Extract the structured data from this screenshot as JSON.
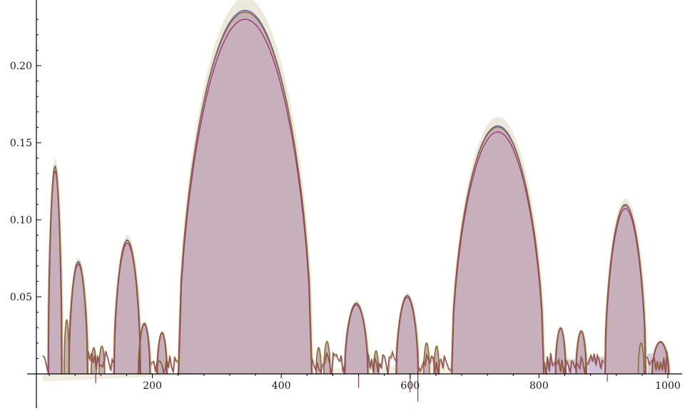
{
  "chart_data": {
    "type": "area",
    "title": "",
    "xlabel": "",
    "ylabel": "",
    "xlim": [
      0,
      1030
    ],
    "ylim": [
      -0.02,
      0.24
    ],
    "x_ticks": [
      200,
      400,
      600,
      800,
      1000
    ],
    "y_ticks": [
      0.05,
      0.1,
      0.15,
      0.2
    ],
    "y_tick_labels": [
      "0.05",
      "0.10",
      "0.15",
      "0.20"
    ],
    "grid": false,
    "legend": "none",
    "colors": {
      "fill": "#c4aeb8",
      "envelope": "#ece9da",
      "series_brown": "#8b6b3a",
      "series_blue": "#4a5fbd",
      "series_magenta": "#9b2d7a",
      "series_lavender": "#b9a0d6"
    },
    "lobes": [
      {
        "x_start": 38,
        "x_end": 60,
        "peak": 0.135
      },
      {
        "x_start": 70,
        "x_end": 100,
        "peak": 0.073
      },
      {
        "x_start": 140,
        "x_end": 182,
        "peak": 0.087
      },
      {
        "x_start": 178,
        "x_end": 197,
        "peak": 0.033
      },
      {
        "x_start": 207,
        "x_end": 223,
        "peak": 0.027
      },
      {
        "x_start": 240,
        "x_end": 448,
        "peak": 0.236
      },
      {
        "x_start": 498,
        "x_end": 535,
        "peak": 0.046
      },
      {
        "x_start": 578,
        "x_end": 613,
        "peak": 0.051
      },
      {
        "x_start": 664,
        "x_end": 808,
        "peak": 0.161
      },
      {
        "x_start": 825,
        "x_end": 842,
        "peak": 0.03
      },
      {
        "x_start": 857,
        "x_end": 874,
        "peak": 0.028
      },
      {
        "x_start": 902,
        "x_end": 966,
        "peak": 0.11
      },
      {
        "x_start": 975,
        "x_end": 1002,
        "peak": 0.021
      }
    ],
    "small_lobes": [
      {
        "x_start": 63,
        "x_end": 71,
        "peak": 0.035
      },
      {
        "x_start": 105,
        "x_end": 113,
        "peak": 0.017
      },
      {
        "x_start": 117,
        "x_end": 126,
        "peak": 0.018
      },
      {
        "x_start": 454,
        "x_end": 462,
        "peak": 0.017
      },
      {
        "x_start": 466,
        "x_end": 476,
        "peak": 0.021
      },
      {
        "x_start": 543,
        "x_end": 551,
        "peak": 0.015
      },
      {
        "x_start": 621,
        "x_end": 630,
        "peak": 0.02
      },
      {
        "x_start": 637,
        "x_end": 645,
        "peak": 0.018
      },
      {
        "x_start": 954,
        "x_end": 963,
        "peak": 0.02
      }
    ]
  }
}
